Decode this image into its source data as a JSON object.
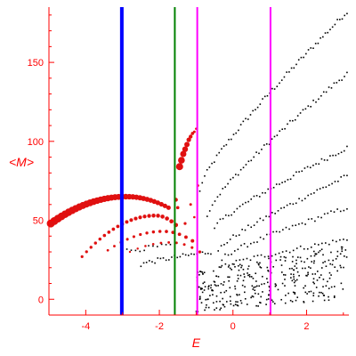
{
  "chart_data": {
    "type": "scatter",
    "title": "",
    "xlabel": "E",
    "ylabel": "<M>",
    "xlim": [
      -5.0,
      3.15
    ],
    "ylim": [
      -10,
      185
    ],
    "x_ticks": [
      -4,
      -2,
      0,
      2
    ],
    "y_ticks": [
      0,
      50,
      100,
      150
    ],
    "x_tick_labels": [
      "-4",
      "-2",
      "0",
      "2"
    ],
    "y_tick_labels": [
      "0",
      "50",
      "100",
      "150"
    ],
    "grid": false,
    "legend": "none",
    "colors": {
      "axes": "#ff0000",
      "red_points": "#e01010",
      "black_points": "#000000",
      "line_blue": "#0000ff",
      "line_green": "#008000",
      "line_magenta": "#ff00ff"
    },
    "vertical_lines": [
      {
        "x": -3.02,
        "color": "#0000ff",
        "width": 4
      },
      {
        "x": -1.58,
        "color": "#008000",
        "width": 2
      },
      {
        "x": -0.97,
        "color": "#ff00ff",
        "width": 2
      },
      {
        "x": 1.02,
        "color": "#ff00ff",
        "width": 2
      }
    ],
    "red_branches": [
      {
        "x_start": -4.95,
        "x_end": -1.75,
        "y_start": 48,
        "y_peak": 65,
        "x_peak": -2.9,
        "y_end": 58,
        "size_start": 4.5,
        "size_end": 2.5,
        "n": 34
      },
      {
        "x_start": -4.1,
        "x_end": -1.55,
        "y_start": 27,
        "y_peak": 53,
        "x_peak": -2.1,
        "y_end": 47,
        "size_start": 1.6,
        "size_end": 2.4,
        "n": 22
      },
      {
        "x_start": -3.4,
        "x_end": -1.1,
        "y_start": 31,
        "y_peak": 43,
        "x_peak": -1.9,
        "y_end": 37,
        "size_start": 1.4,
        "size_end": 2.0,
        "n": 14
      },
      {
        "x_start": -2.8,
        "x_end": -0.9,
        "y_start": 30,
        "y_peak": 36,
        "x_peak": -1.7,
        "y_end": 30,
        "size_start": 1.2,
        "size_end": 1.6,
        "n": 10
      }
    ],
    "red_upper_branch": {
      "x": [
        -1.45,
        -1.4,
        -1.35,
        -1.3,
        -1.25,
        -1.2,
        -1.15,
        -1.1,
        -1.05,
        -1.0
      ],
      "y": [
        84,
        88,
        92,
        95,
        98,
        101,
        103,
        105,
        106,
        108
      ],
      "sizes": [
        4.0,
        3.8,
        3.5,
        3.2,
        3.0,
        2.6,
        2.2,
        1.8,
        1.5,
        1.3
      ]
    },
    "red_scatter_extra": [
      {
        "x": -1.55,
        "y": 63,
        "s": 2.2
      },
      {
        "x": -1.5,
        "y": 58,
        "s": 1.8
      },
      {
        "x": -1.3,
        "y": 48,
        "s": 1.6
      },
      {
        "x": -1.15,
        "y": 60,
        "s": 1.5
      },
      {
        "x": -0.95,
        "y": 72,
        "s": 1.4
      },
      {
        "x": -1.05,
        "y": 52,
        "s": 1.3
      }
    ],
    "black_curves": [
      {
        "x_start": -0.9,
        "x_end": 3.1,
        "y_start": 68,
        "y_end": 182,
        "n": 62
      },
      {
        "x_start": -0.7,
        "x_end": 3.1,
        "y_start": 52,
        "y_end": 143,
        "n": 55
      },
      {
        "x_start": -0.5,
        "x_end": 3.1,
        "y_start": 44,
        "y_end": 96,
        "n": 48
      },
      {
        "x_start": -0.4,
        "x_end": 3.1,
        "y_start": 30,
        "y_end": 78,
        "n": 44
      },
      {
        "x_start": -0.3,
        "x_end": 3.1,
        "y_start": 25,
        "y_end": 58,
        "n": 40
      },
      {
        "x_start": -0.3,
        "x_end": 3.1,
        "y_start": 20,
        "y_end": 38,
        "n": 36
      },
      {
        "x_start": -2.5,
        "x_end": -0.6,
        "y_start": 22,
        "y_end": 30,
        "n": 26
      },
      {
        "x_start": -3.0,
        "x_end": -1.7,
        "y_start": 30,
        "y_end": 34,
        "n": 12
      }
    ],
    "black_cloud": {
      "x_range": [
        -1.0,
        3.1
      ],
      "y_range": [
        -8,
        35
      ],
      "n": 320
    }
  }
}
